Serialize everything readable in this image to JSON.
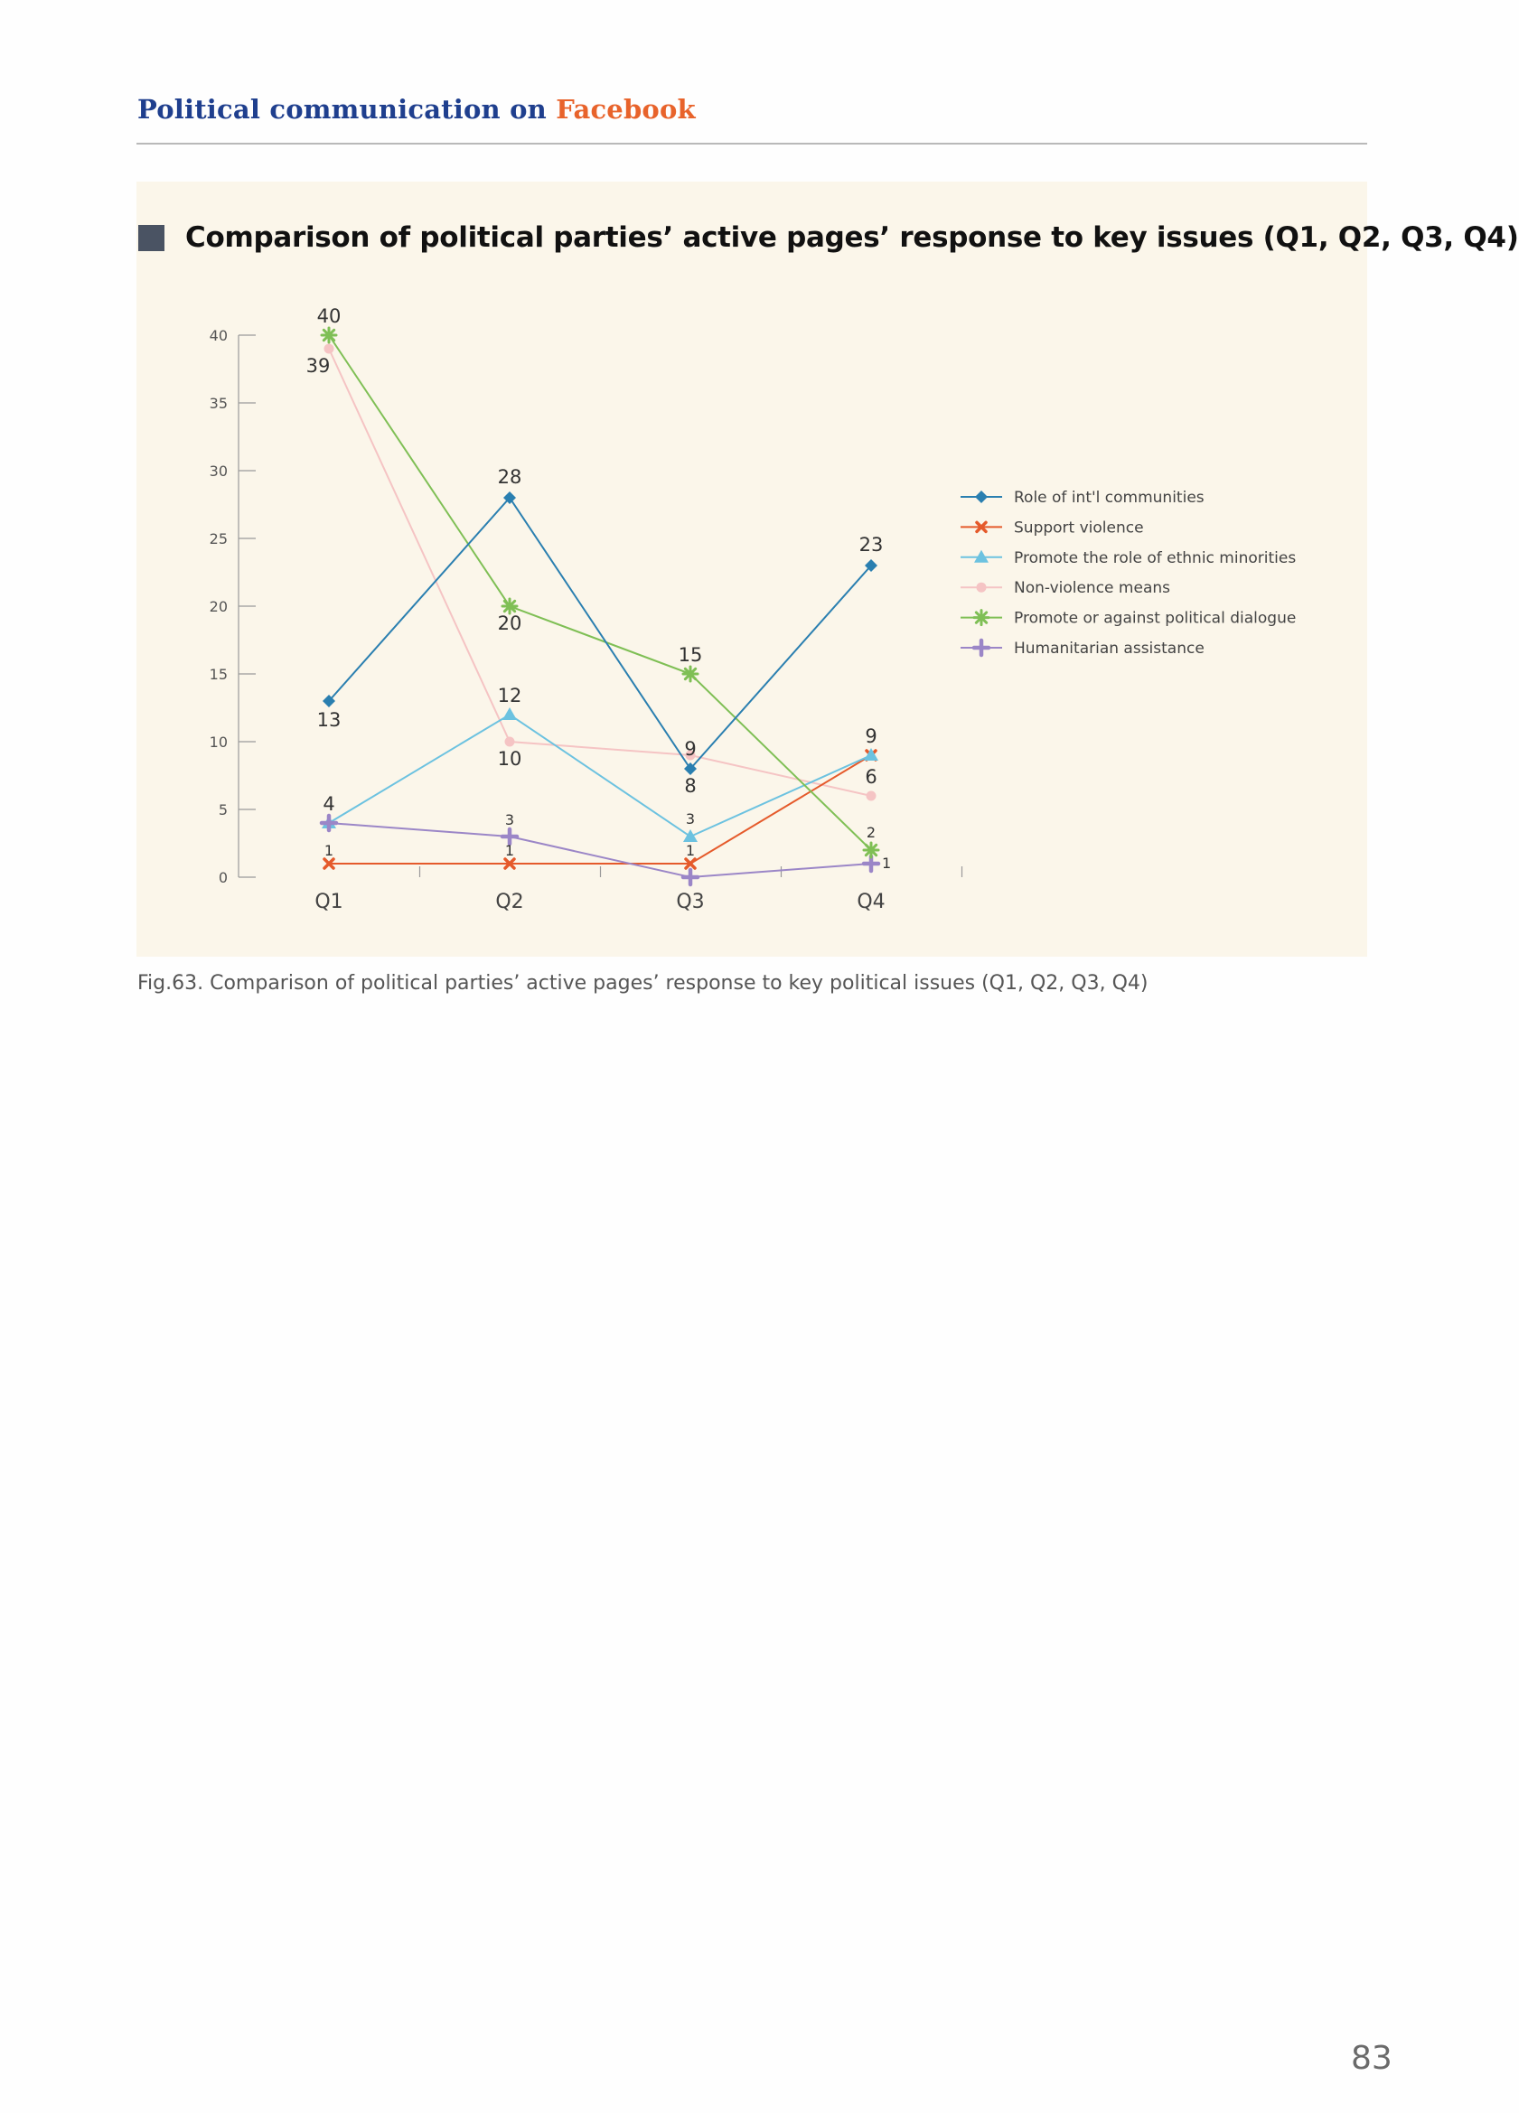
{
  "header": {
    "title_part1": "Political communication on ",
    "title_part2": "Facebook"
  },
  "chart_title": "Comparison of political parties’ active pages’ response to key issues (Q1, Q2, Q3, Q4)",
  "caption": "Fig.63. Comparison of political parties’ active pages’ response to key political issues (Q1, Q2, Q3, Q4)",
  "page_number": "83",
  "chart_data": {
    "type": "line",
    "title": "Comparison of political parties’ active pages’ response to key issues (Q1, Q2, Q3, Q4)",
    "categories": [
      "Q1",
      "Q2",
      "Q3",
      "Q4"
    ],
    "ylim": [
      0,
      40
    ],
    "yticks": [
      0,
      5,
      10,
      15,
      20,
      25,
      30,
      35,
      40
    ],
    "grid": false,
    "legend_position": "right",
    "series": [
      {
        "name": "Role of int'l communities",
        "values": [
          13,
          28,
          8,
          23
        ],
        "labels": [
          "13",
          "28",
          "8",
          "23"
        ],
        "color": "#2a7fb0",
        "marker": "diamond"
      },
      {
        "name": "Support violence",
        "values": [
          1,
          1,
          1,
          9
        ],
        "labels": [
          "1",
          "1",
          "1",
          ""
        ],
        "color": "#e55a2b",
        "marker": "x"
      },
      {
        "name": "Promote the role of ethnic minorities",
        "values": [
          4,
          12,
          3,
          9
        ],
        "labels": [
          "4",
          "12",
          "3",
          "9"
        ],
        "color": "#6cc2e0",
        "marker": "triangle"
      },
      {
        "name": "Non-violence means",
        "values": [
          39,
          10,
          9,
          6
        ],
        "labels": [
          "39",
          "10",
          "9",
          "6"
        ],
        "color": "#f5c4c4",
        "marker": "circle"
      },
      {
        "name": "Promote or against political dialogue",
        "values": [
          40,
          20,
          15,
          2
        ],
        "labels": [
          "40",
          "20",
          "15",
          "2"
        ],
        "color": "#7fbf55",
        "marker": "star"
      },
      {
        "name": "Humanitarian assistance",
        "values": [
          4,
          3,
          0,
          1
        ],
        "labels": [
          "",
          "3",
          "",
          "1"
        ],
        "color": "#9b86c7",
        "marker": "plus"
      }
    ]
  }
}
